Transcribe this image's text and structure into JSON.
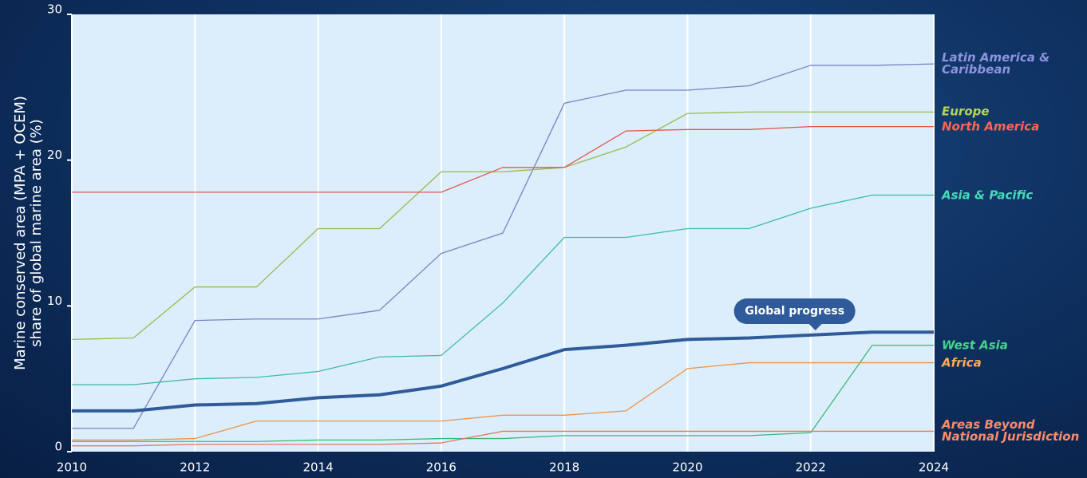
{
  "chart_data": {
    "type": "line",
    "y_label": "Marine conserved area (MPA + OCEM)\nshare of global marine area (%)",
    "annotation": "Global progress",
    "x": [
      2010,
      2011,
      2012,
      2013,
      2014,
      2015,
      2016,
      2017,
      2018,
      2019,
      2020,
      2021,
      2022,
      2023,
      2024
    ],
    "xlim": [
      2010,
      2024
    ],
    "xticks": [
      2010,
      2012,
      2014,
      2016,
      2018,
      2020,
      2022,
      2024
    ],
    "ylim": [
      0,
      30
    ],
    "yticks": [
      0,
      10,
      20,
      30
    ],
    "grid": true,
    "series": [
      {
        "name": "Latin America &\nCaribbean",
        "color": "#7b80c2",
        "values": [
          1.6,
          1.6,
          9.0,
          9.1,
          9.1,
          9.7,
          13.6,
          15.0,
          23.9,
          24.8,
          24.8,
          25.1,
          26.5,
          26.5,
          26.6
        ]
      },
      {
        "name": "Europe",
        "color": "#9bb84c",
        "values": [
          7.7,
          7.8,
          11.3,
          11.3,
          15.3,
          15.3,
          19.2,
          19.2,
          19.5,
          20.9,
          23.2,
          23.3,
          23.3,
          23.3,
          23.3
        ]
      },
      {
        "name": "North America",
        "color": "#e2574c",
        "values": [
          17.8,
          17.8,
          17.8,
          17.8,
          17.8,
          17.8,
          17.8,
          19.5,
          19.5,
          22.0,
          22.1,
          22.1,
          22.3,
          22.3,
          22.3
        ]
      },
      {
        "name": "Asia & Pacific",
        "color": "#3dbd9e",
        "values": [
          4.6,
          4.6,
          5.0,
          5.1,
          5.5,
          6.5,
          6.6,
          10.2,
          14.7,
          14.7,
          15.3,
          15.3,
          16.7,
          17.6,
          17.6
        ]
      },
      {
        "name": "West Asia",
        "color": "#3cb878",
        "values": [
          0.7,
          0.7,
          0.7,
          0.7,
          0.8,
          0.8,
          0.9,
          0.9,
          1.1,
          1.1,
          1.1,
          1.1,
          1.3,
          7.3,
          7.3
        ]
      },
      {
        "name": "Africa",
        "color": "#e8954a",
        "values": [
          0.8,
          0.8,
          0.9,
          2.1,
          2.1,
          2.1,
          2.1,
          2.5,
          2.5,
          2.8,
          5.7,
          6.1,
          6.1,
          6.1,
          6.1
        ]
      },
      {
        "name": "Areas Beyond\nNational Jurisdiction",
        "color": "#e8785a",
        "values": [
          0.4,
          0.4,
          0.5,
          0.5,
          0.5,
          0.5,
          0.6,
          1.4,
          1.4,
          1.4,
          1.4,
          1.4,
          1.4,
          1.4,
          1.4
        ]
      },
      {
        "name": "Global progress",
        "color": "#2f5b9a",
        "values": [
          2.8,
          2.8,
          3.2,
          3.3,
          3.7,
          3.9,
          4.5,
          5.7,
          7.0,
          7.3,
          7.7,
          7.8,
          8.0,
          8.2,
          8.2
        ],
        "width": 4,
        "legend": false
      }
    ]
  }
}
